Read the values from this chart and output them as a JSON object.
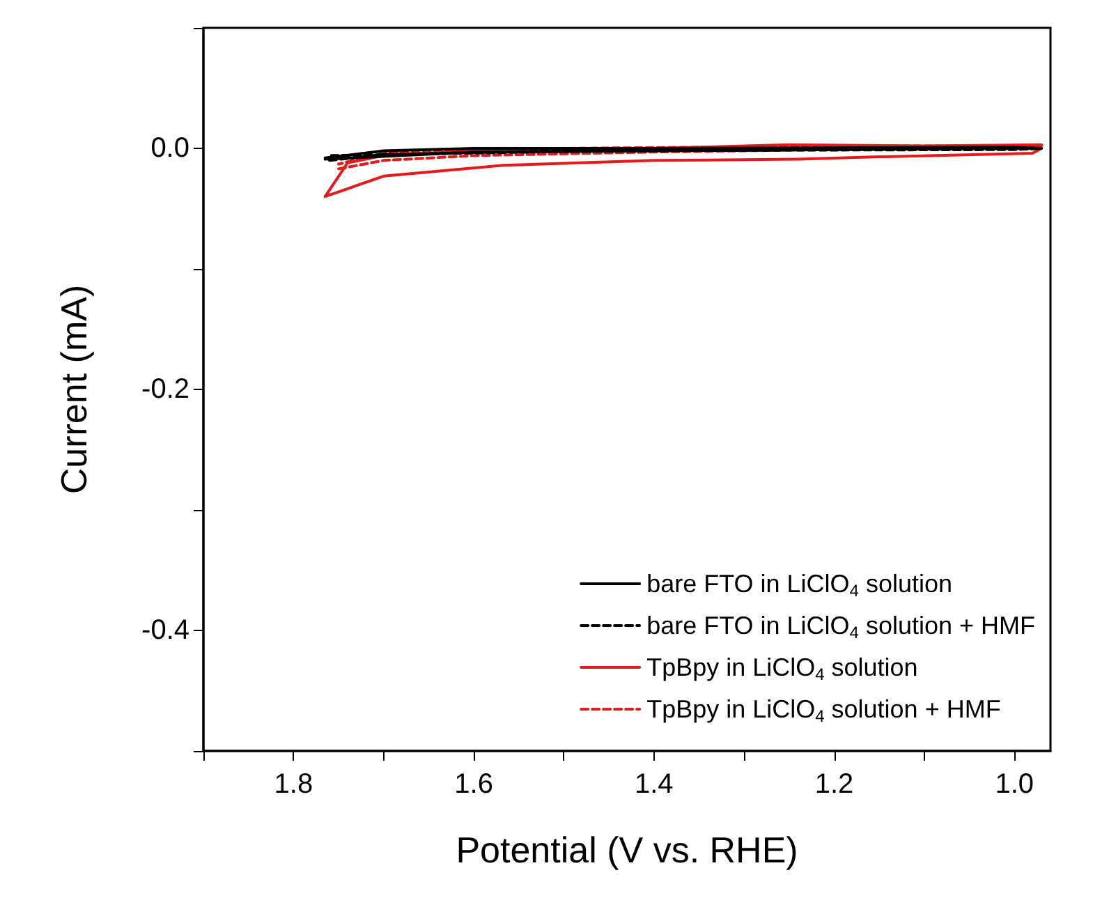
{
  "chart_data": {
    "type": "line",
    "xlabel": "Potential (V vs. RHE)",
    "ylabel": "Current (mA)",
    "xlim": [
      1.9,
      0.96
    ],
    "xticks": [
      {
        "value": 1.9,
        "label": null
      },
      1.8,
      {
        "value": 1.7,
        "label": null
      },
      1.6,
      {
        "value": 1.5,
        "label": null
      },
      1.4,
      {
        "value": 1.3,
        "label": null
      },
      1.2,
      {
        "value": 1.1,
        "label": null
      },
      {
        "value": 1.0,
        "label": "1.0"
      }
    ],
    "ylim": [
      -0.5,
      0.1
    ],
    "yticks": [
      {
        "value": -0.5,
        "label": null
      },
      {
        "value": -0.4,
        "label": "-0.4"
      },
      {
        "value": -0.3,
        "label": null
      },
      {
        "value": -0.2,
        "label": "-0.2"
      },
      {
        "value": -0.1,
        "label": null
      },
      {
        "value": 0,
        "label": "0.0"
      },
      {
        "value": 0.1,
        "label": null
      }
    ],
    "grid": false,
    "legend": "bottom right",
    "marker": "none",
    "series": [
      {
        "name": "bare FTO in LiClO$_{4}$ solution",
        "color": "#000000",
        "line_style": "solid",
        "x": [
          1.765,
          1.7,
          1.6,
          1.4,
          1.0,
          0.97,
          1.2,
          1.6,
          1.765
        ],
        "values": [
          -0.008,
          -0.002,
          0,
          0,
          0.001,
          0,
          -0.001,
          -0.003,
          -0.009
        ]
      },
      {
        "name": "bare FTO in LiClO$_{4}$ solution + HMF",
        "color": "#000000",
        "line_style": "dashed",
        "x": [
          1.76,
          1.7,
          1.5,
          1.0,
          0.97,
          1.3,
          1.76
        ],
        "values": [
          -0.01,
          -0.005,
          -0.002,
          -0.001,
          0,
          0,
          -0.006
        ]
      },
      {
        "name": "TpBpy in LiClO$_{4}$ solution",
        "color": "#e41a1c",
        "line_style": "solid",
        "x": [
          0.97,
          0.98,
          1.15,
          1.24,
          1.4,
          1.567,
          1.7,
          1.765,
          1.74,
          1.7,
          1.6,
          1.4,
          1.25,
          1.1,
          0.97
        ],
        "values": [
          0,
          -0.004,
          -0.007,
          -0.009,
          -0.01,
          -0.014,
          -0.023,
          -0.04,
          -0.012,
          -0.006,
          -0.002,
          0,
          0.003,
          0.002,
          0.003
        ]
      },
      {
        "name": "TpBpy in LiClO$_{4}$ solution + HMF",
        "color": "#e41a1c",
        "line_style": "dashed",
        "x": [
          1.75,
          1.7,
          1.6,
          1.4,
          1.2,
          1.0,
          0.97,
          1.2,
          1.5,
          1.7,
          1.75
        ],
        "values": [
          -0.017,
          -0.01,
          -0.006,
          -0.003,
          -0.001,
          0,
          0.002,
          0.002,
          0,
          -0.004,
          -0.013
        ]
      }
    ]
  }
}
